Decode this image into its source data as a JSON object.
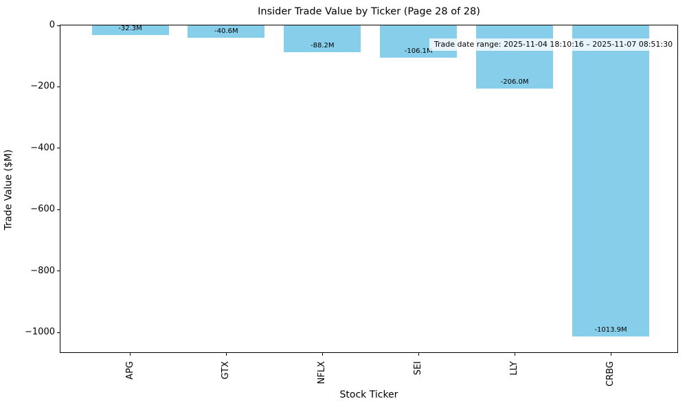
{
  "chart_data": {
    "type": "bar",
    "title": "Insider Trade Value by Ticker (Page 28 of 28)",
    "xlabel": "Stock Ticker",
    "ylabel": "Trade Value ($M)",
    "categories": [
      "APG",
      "GTX",
      "NFLX",
      "SEI",
      "LLY",
      "CRBG"
    ],
    "values": [
      -32.3,
      -40.6,
      -88.2,
      -106.1,
      -206.0,
      -1013.9
    ],
    "bar_labels": [
      "-32.3M",
      "-40.6M",
      "-88.2M",
      "-106.1M",
      "-206.0M",
      "-1013.9M"
    ],
    "annotation": "Trade date range: 2025-11-04 18:10:16 – 2025-11-07 08:51:30",
    "ytick_values": [
      0,
      -200,
      -400,
      -600,
      -800,
      -1000
    ],
    "ytick_labels": [
      "0",
      "−200",
      "−400",
      "−600",
      "−800",
      "−1000"
    ],
    "ylim": [
      -1064.6,
      0
    ],
    "x_tick_rotation": 90,
    "bar_color": "#87CEEB",
    "text_color": "#000000",
    "background_color": "#ffffff",
    "grid": false,
    "legend": null
  }
}
